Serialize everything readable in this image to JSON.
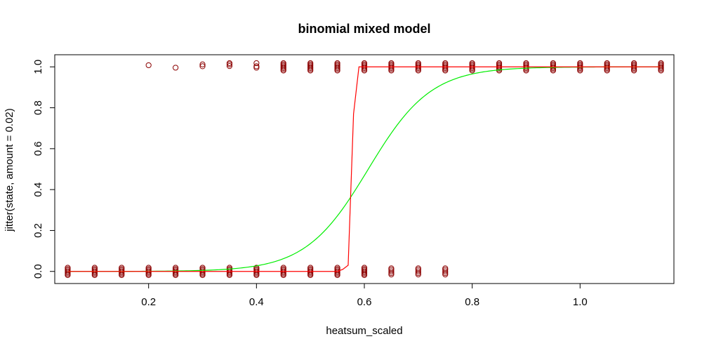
{
  "chart_data": {
    "type": "scatter",
    "title": "binomial mixed model",
    "xlabel": "heatsum_scaled",
    "ylabel": "jitter(state, amount = 0.02)",
    "xlim": [
      0.026,
      1.174
    ],
    "ylim": [
      -0.0592,
      1.0592
    ],
    "xticks": [
      0.2,
      0.4,
      0.6,
      0.8,
      1.0
    ],
    "xtick_labels": [
      "0.2",
      "0.4",
      "0.6",
      "0.8",
      "1.0"
    ],
    "yticks": [
      0.0,
      0.2,
      0.4,
      0.6,
      0.8,
      1.0
    ],
    "ytick_labels": [
      "0.0",
      "0.2",
      "0.4",
      "0.6",
      "0.8",
      "1.0"
    ],
    "grid": false,
    "legend": "none",
    "colors": {
      "points": "#8b0000",
      "fitted": "#ff0000",
      "logistic": "#00ee00",
      "axis": "#000000"
    },
    "points_state0": {
      "x": [
        0.05,
        0.1,
        0.15,
        0.2,
        0.25,
        0.3,
        0.35,
        0.4,
        0.45,
        0.5,
        0.55,
        0.6,
        0.65,
        0.7,
        0.75
      ],
      "y": [
        [
          0.018,
          0.012,
          0.006,
          0.0,
          -0.006,
          -0.012,
          -0.018
        ],
        [
          0.018,
          0.012,
          0.006,
          0.0,
          -0.006,
          -0.012,
          -0.018
        ],
        [
          0.018,
          0.012,
          0.006,
          0.0,
          -0.006,
          -0.012,
          -0.018
        ],
        [
          0.018,
          0.012,
          0.006,
          0.0,
          -0.006,
          -0.012,
          -0.018
        ],
        [
          0.018,
          0.012,
          0.006,
          0.0,
          -0.006,
          -0.012,
          -0.018
        ],
        [
          0.018,
          0.012,
          0.006,
          0.0,
          -0.006,
          -0.012,
          -0.018
        ],
        [
          0.018,
          0.012,
          0.006,
          0.0,
          -0.006,
          -0.012,
          -0.018
        ],
        [
          0.018,
          0.012,
          0.006,
          0.0,
          -0.006,
          -0.012,
          -0.018
        ],
        [
          0.018,
          0.012,
          0.006,
          0.0,
          -0.006,
          -0.012,
          -0.018
        ],
        [
          0.018,
          0.012,
          0.006,
          0.0,
          -0.006,
          -0.012,
          -0.018
        ],
        [
          0.018,
          0.012,
          0.006,
          0.0,
          -0.006,
          -0.012,
          -0.018
        ],
        [
          0.018,
          0.012,
          0.006,
          0.0,
          -0.006,
          -0.012,
          -0.018
        ],
        [
          0.015,
          0.008,
          0.0,
          -0.008,
          -0.015
        ],
        [
          0.015,
          0.008,
          0.0,
          -0.008,
          -0.015
        ],
        [
          0.015,
          0.008,
          0.0,
          -0.008,
          -0.015
        ]
      ]
    },
    "points_state1": {
      "x": [
        0.2,
        0.25,
        0.3,
        0.35,
        0.4,
        0.45,
        0.5,
        0.55,
        0.6,
        0.65,
        0.7,
        0.75,
        0.8,
        0.85,
        0.9,
        0.95,
        1.0,
        1.05,
        1.1,
        1.15
      ],
      "y": [
        [
          1.008
        ],
        [
          0.996
        ],
        [
          1.012,
          1.003
        ],
        [
          1.018,
          1.012,
          1.004
        ],
        [
          1.018,
          1.003,
          0.996
        ],
        [
          1.018,
          1.012,
          1.006,
          1.0,
          0.994,
          0.988,
          0.982
        ],
        [
          1.018,
          1.012,
          1.006,
          1.0,
          0.994,
          0.988,
          0.982
        ],
        [
          1.018,
          1.012,
          1.006,
          1.0,
          0.994,
          0.988,
          0.982
        ],
        [
          1.018,
          1.012,
          1.006,
          1.0,
          0.994,
          0.988,
          0.982
        ],
        [
          1.018,
          1.012,
          1.006,
          1.0,
          0.994,
          0.988,
          0.982
        ],
        [
          1.018,
          1.012,
          1.006,
          1.0,
          0.994,
          0.988,
          0.982
        ],
        [
          1.018,
          1.012,
          1.006,
          1.0,
          0.994,
          0.988,
          0.982
        ],
        [
          1.018,
          1.012,
          1.006,
          1.0,
          0.994,
          0.988,
          0.982
        ],
        [
          1.018,
          1.012,
          1.006,
          1.0,
          0.994,
          0.988,
          0.982
        ],
        [
          1.018,
          1.012,
          1.006,
          1.0,
          0.994,
          0.988,
          0.982
        ],
        [
          1.018,
          1.012,
          1.006,
          1.0,
          0.994,
          0.988,
          0.982
        ],
        [
          1.018,
          1.012,
          1.006,
          1.0,
          0.994,
          0.988,
          0.982
        ],
        [
          1.018,
          1.012,
          1.006,
          1.0,
          0.994,
          0.988,
          0.982
        ],
        [
          1.018,
          1.012,
          1.006,
          1.0,
          0.994,
          0.988,
          0.982
        ],
        [
          1.018,
          1.012,
          1.006,
          1.0,
          0.994,
          0.988,
          0.982
        ]
      ]
    },
    "fitted_line": {
      "x": [
        0.05,
        0.55,
        0.56,
        0.57,
        0.58,
        0.59,
        0.6,
        1.15
      ],
      "y": [
        0.0,
        0.0,
        0.01,
        0.03,
        0.77,
        1.0,
        1.0,
        1.0
      ]
    },
    "logistic_curve": {
      "intercept": -10.47,
      "slope": 17.24,
      "x_range": [
        0.05,
        1.15
      ]
    }
  }
}
